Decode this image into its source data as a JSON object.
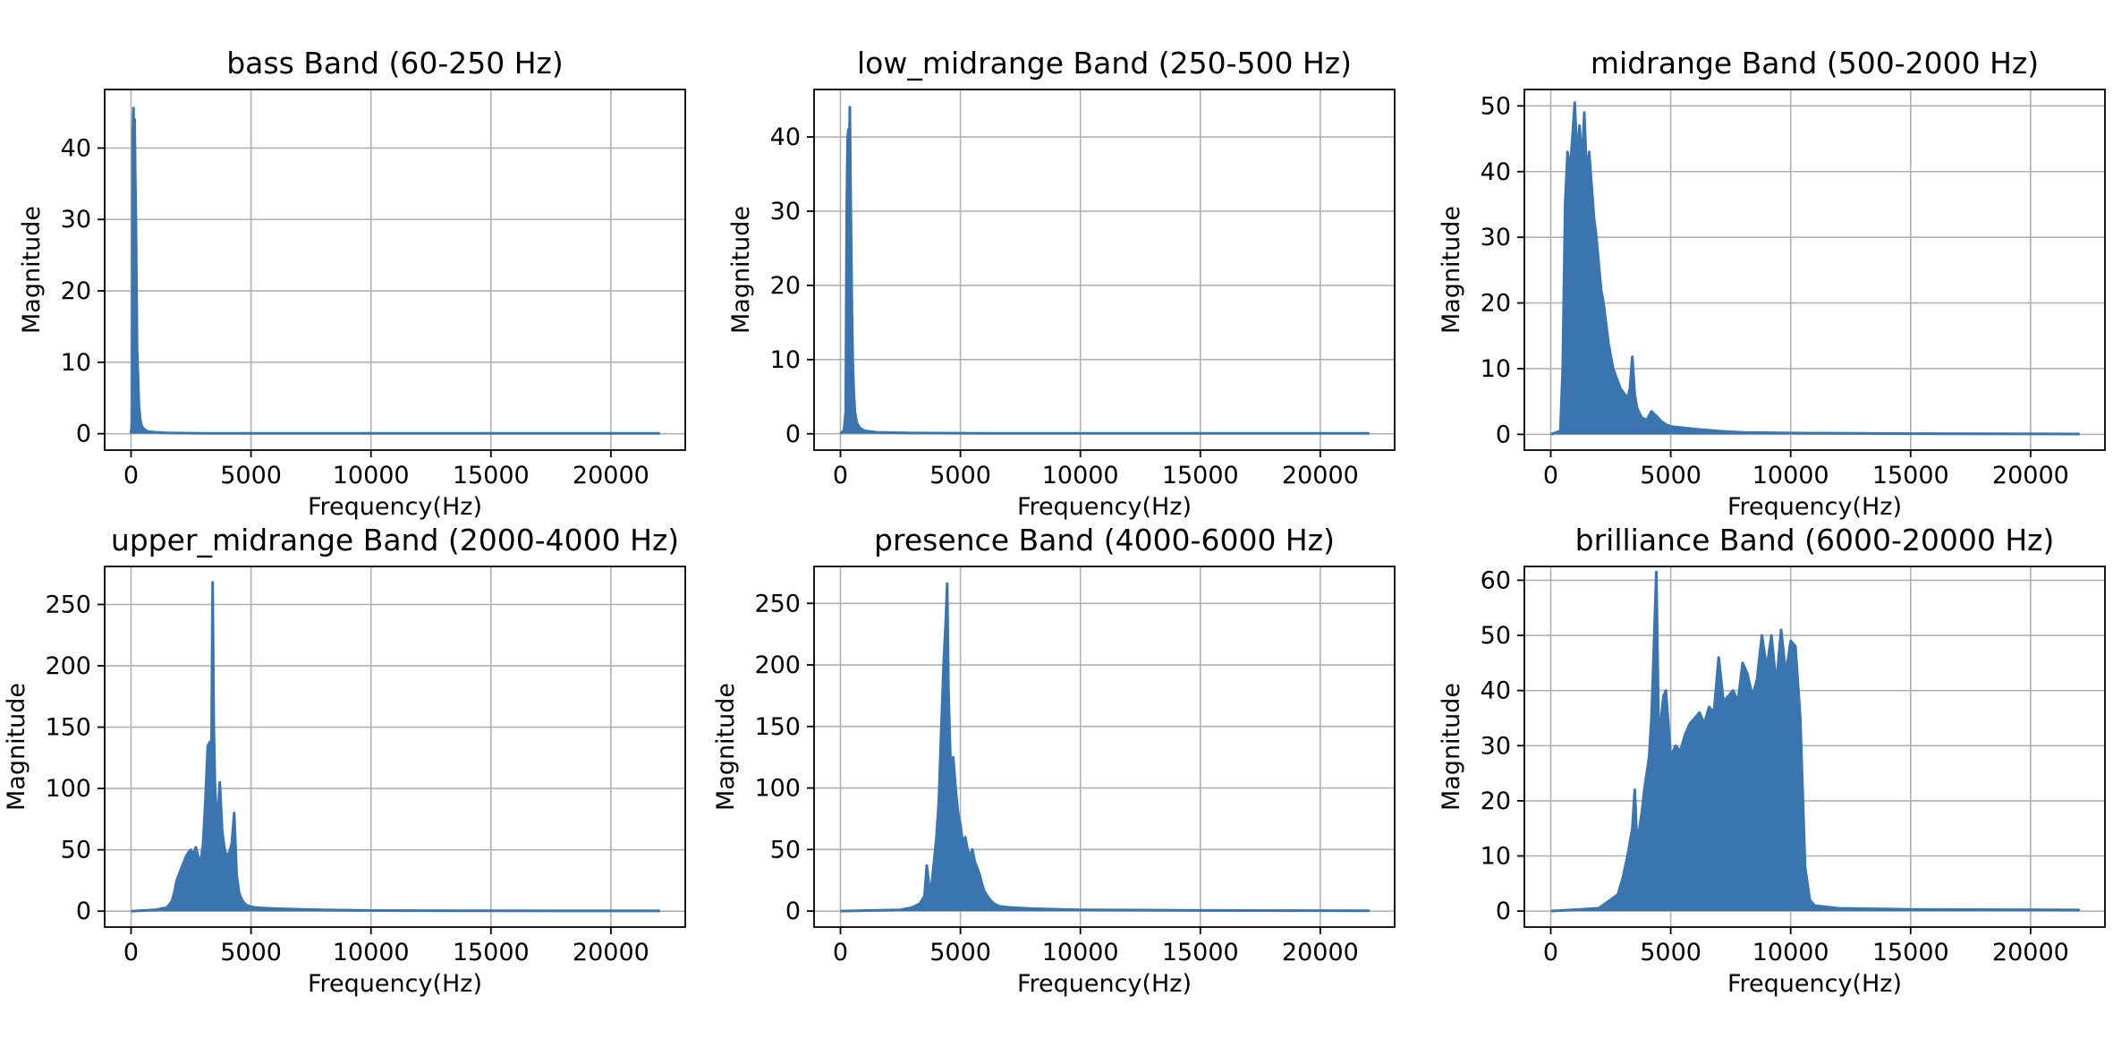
{
  "chart_data": [
    {
      "type": "line",
      "title": "bass Band (60-250 Hz)",
      "xlabel": "Frequency(Hz)",
      "ylabel": "Magnitude",
      "xlim": [
        -1100,
        23100
      ],
      "ylim": [
        -2.3,
        48.2
      ],
      "xticks": [
        0,
        5000,
        10000,
        15000,
        20000
      ],
      "yticks": [
        0,
        10,
        20,
        30,
        40
      ],
      "grid": true,
      "color": "#3b75af",
      "series": [
        {
          "x": [
            0,
            40,
            70,
            100,
            125,
            150,
            175,
            200,
            225,
            250,
            290,
            330,
            380,
            450,
            550,
            700,
            1000,
            1500,
            3000,
            6000,
            10000,
            15000,
            20000,
            22050
          ],
          "y": [
            0,
            2,
            42,
            45.6,
            40,
            44,
            36,
            30,
            22,
            12,
            8,
            4,
            2,
            1,
            0.6,
            0.3,
            0.2,
            0.1,
            0.05,
            0.05,
            0.05,
            0.05,
            0.05,
            0.05
          ]
        }
      ]
    },
    {
      "type": "line",
      "title": "low_midrange Band (250-500 Hz)",
      "xlabel": "Frequency(Hz)",
      "ylabel": "Magnitude",
      "xlim": [
        -1100,
        23100
      ],
      "ylim": [
        -2.2,
        46.4
      ],
      "xticks": [
        0,
        5000,
        10000,
        15000,
        20000
      ],
      "yticks": [
        0,
        10,
        20,
        30,
        40
      ],
      "grid": true,
      "color": "#3b75af",
      "series": [
        {
          "x": [
            0,
            150,
            220,
            260,
            300,
            330,
            360,
            390,
            420,
            450,
            480,
            510,
            550,
            600,
            680,
            800,
            1000,
            1500,
            3000,
            6000,
            10000,
            15000,
            20000,
            22050
          ],
          "y": [
            0,
            0.5,
            3,
            30,
            40,
            41,
            36,
            44,
            33,
            24,
            16,
            10,
            6,
            3,
            1.5,
            0.8,
            0.4,
            0.2,
            0.1,
            0.05,
            0.05,
            0.05,
            0.05,
            0.05
          ]
        }
      ]
    },
    {
      "type": "line",
      "title": "midrange Band (500-2000 Hz)",
      "xlabel": "Frequency(Hz)",
      "ylabel": "Magnitude",
      "xlim": [
        -1100,
        23100
      ],
      "ylim": [
        -2.4,
        52.5
      ],
      "xticks": [
        0,
        5000,
        10000,
        15000,
        20000
      ],
      "yticks": [
        0,
        10,
        20,
        30,
        40,
        50
      ],
      "grid": true,
      "color": "#3b75af",
      "series": [
        {
          "x": [
            0,
            400,
            500,
            600,
            700,
            800,
            900,
            1000,
            1100,
            1200,
            1300,
            1400,
            1500,
            1600,
            1700,
            1800,
            1900,
            2000,
            2100,
            2200,
            2300,
            2400,
            2500,
            2600,
            2700,
            2800,
            2900,
            3000,
            3100,
            3200,
            3300,
            3400,
            3500,
            3600,
            3700,
            3800,
            4000,
            4200,
            4400,
            4600,
            4800,
            5000,
            5500,
            6000,
            7000,
            8000,
            10000,
            15000,
            22050
          ],
          "y": [
            0,
            0.5,
            10,
            35,
            43,
            40,
            45,
            50.5,
            42,
            47,
            41,
            49,
            39,
            43,
            38,
            33,
            30,
            26,
            22,
            20,
            17,
            14,
            12,
            10,
            9,
            8,
            7,
            6.5,
            6,
            5.5,
            7,
            11.8,
            6,
            4,
            3.2,
            2.5,
            2.2,
            3.5,
            2.8,
            2,
            1.5,
            1.2,
            1,
            0.8,
            0.5,
            0.3,
            0.2,
            0.1,
            0.05
          ]
        }
      ]
    },
    {
      "type": "line",
      "title": "upper_midrange Band (2000-4000 Hz)",
      "xlabel": "Frequency(Hz)",
      "ylabel": "Magnitude",
      "xlim": [
        -1100,
        23100
      ],
      "ylim": [
        -13,
        281
      ],
      "xticks": [
        0,
        5000,
        10000,
        15000,
        20000
      ],
      "yticks": [
        0,
        50,
        100,
        150,
        200,
        250
      ],
      "grid": true,
      "color": "#3b75af",
      "series": [
        {
          "x": [
            0,
            1000,
            1500,
            1700,
            1800,
            1900,
            2000,
            2100,
            2200,
            2300,
            2400,
            2500,
            2600,
            2700,
            2800,
            2900,
            3000,
            3100,
            3200,
            3300,
            3350,
            3400,
            3450,
            3500,
            3600,
            3700,
            3800,
            3900,
            4000,
            4100,
            4200,
            4300,
            4400,
            4500,
            4600,
            4700,
            4800,
            5000,
            5200,
            5500,
            6000,
            7000,
            8000,
            10000,
            15000,
            22050
          ],
          "y": [
            0,
            1,
            3,
            8,
            15,
            25,
            30,
            35,
            40,
            45,
            48,
            50,
            46,
            52,
            44,
            40,
            55,
            90,
            135,
            138,
            120,
            268,
            150,
            100,
            70,
            105,
            65,
            50,
            45,
            48,
            55,
            80,
            30,
            15,
            10,
            7,
            5,
            3.5,
            3,
            2.5,
            2,
            1.5,
            1,
            0.5,
            0.3,
            0.2
          ]
        }
      ]
    },
    {
      "type": "line",
      "title": "presence Band (4000-6000 Hz)",
      "xlabel": "Frequency(Hz)",
      "ylabel": "Magnitude",
      "xlim": [
        -1100,
        23100
      ],
      "ylim": [
        -13,
        280
      ],
      "xticks": [
        0,
        5000,
        10000,
        15000,
        20000
      ],
      "yticks": [
        0,
        50,
        100,
        150,
        200,
        250
      ],
      "grid": true,
      "color": "#3b75af",
      "series": [
        {
          "x": [
            0,
            2500,
            3000,
            3300,
            3500,
            3600,
            3700,
            3800,
            3900,
            4000,
            4100,
            4200,
            4300,
            4400,
            4450,
            4500,
            4600,
            4700,
            4800,
            4900,
            5000,
            5100,
            5200,
            5300,
            5400,
            5500,
            5600,
            5700,
            5800,
            5900,
            6000,
            6200,
            6400,
            6600,
            7000,
            7500,
            8000,
            9000,
            10000,
            15000,
            22050
          ],
          "y": [
            0,
            1,
            3,
            6,
            12,
            37,
            20,
            22,
            40,
            60,
            90,
            145,
            200,
            240,
            266,
            180,
            110,
            125,
            100,
            80,
            70,
            55,
            60,
            50,
            45,
            50,
            40,
            35,
            30,
            22,
            16,
            10,
            6,
            4,
            3,
            2.5,
            2,
            1.5,
            1,
            0.5,
            0.3
          ]
        }
      ]
    },
    {
      "type": "line",
      "title": "brilliance Band (6000-20000 Hz)",
      "xlabel": "Frequency(Hz)",
      "ylabel": "Magnitude",
      "xlim": [
        -1100,
        23100
      ],
      "ylim": [
        -2.9,
        62.5
      ],
      "xticks": [
        0,
        5000,
        10000,
        15000,
        20000
      ],
      "yticks": [
        0,
        10,
        20,
        30,
        40,
        50,
        60
      ],
      "grid": true,
      "color": "#3b75af",
      "series": [
        {
          "x": [
            0,
            2000,
            2800,
            3000,
            3200,
            3400,
            3500,
            3600,
            3700,
            3800,
            3900,
            4000,
            4100,
            4200,
            4300,
            4400,
            4500,
            4600,
            4700,
            4800,
            4900,
            5000,
            5200,
            5400,
            5600,
            5800,
            6000,
            6200,
            6400,
            6600,
            6800,
            7000,
            7200,
            7400,
            7600,
            7800,
            8000,
            8200,
            8400,
            8600,
            8800,
            9000,
            9200,
            9400,
            9600,
            9800,
            10000,
            10200,
            10400,
            10600,
            10800,
            11000,
            12000,
            15000,
            22050
          ],
          "y": [
            0,
            0.5,
            3,
            6,
            10,
            15,
            22,
            12,
            15,
            18,
            22,
            25,
            28,
            35,
            48,
            61.5,
            32,
            35,
            39,
            40,
            34,
            28,
            30,
            29,
            32,
            34,
            35,
            36,
            34,
            37,
            36,
            46,
            38,
            39,
            40,
            38,
            45,
            43,
            39,
            42,
            50,
            44,
            50,
            41,
            51,
            43,
            49,
            48,
            35,
            8,
            2,
            1,
            0.5,
            0.3,
            0.2
          ]
        }
      ]
    }
  ]
}
